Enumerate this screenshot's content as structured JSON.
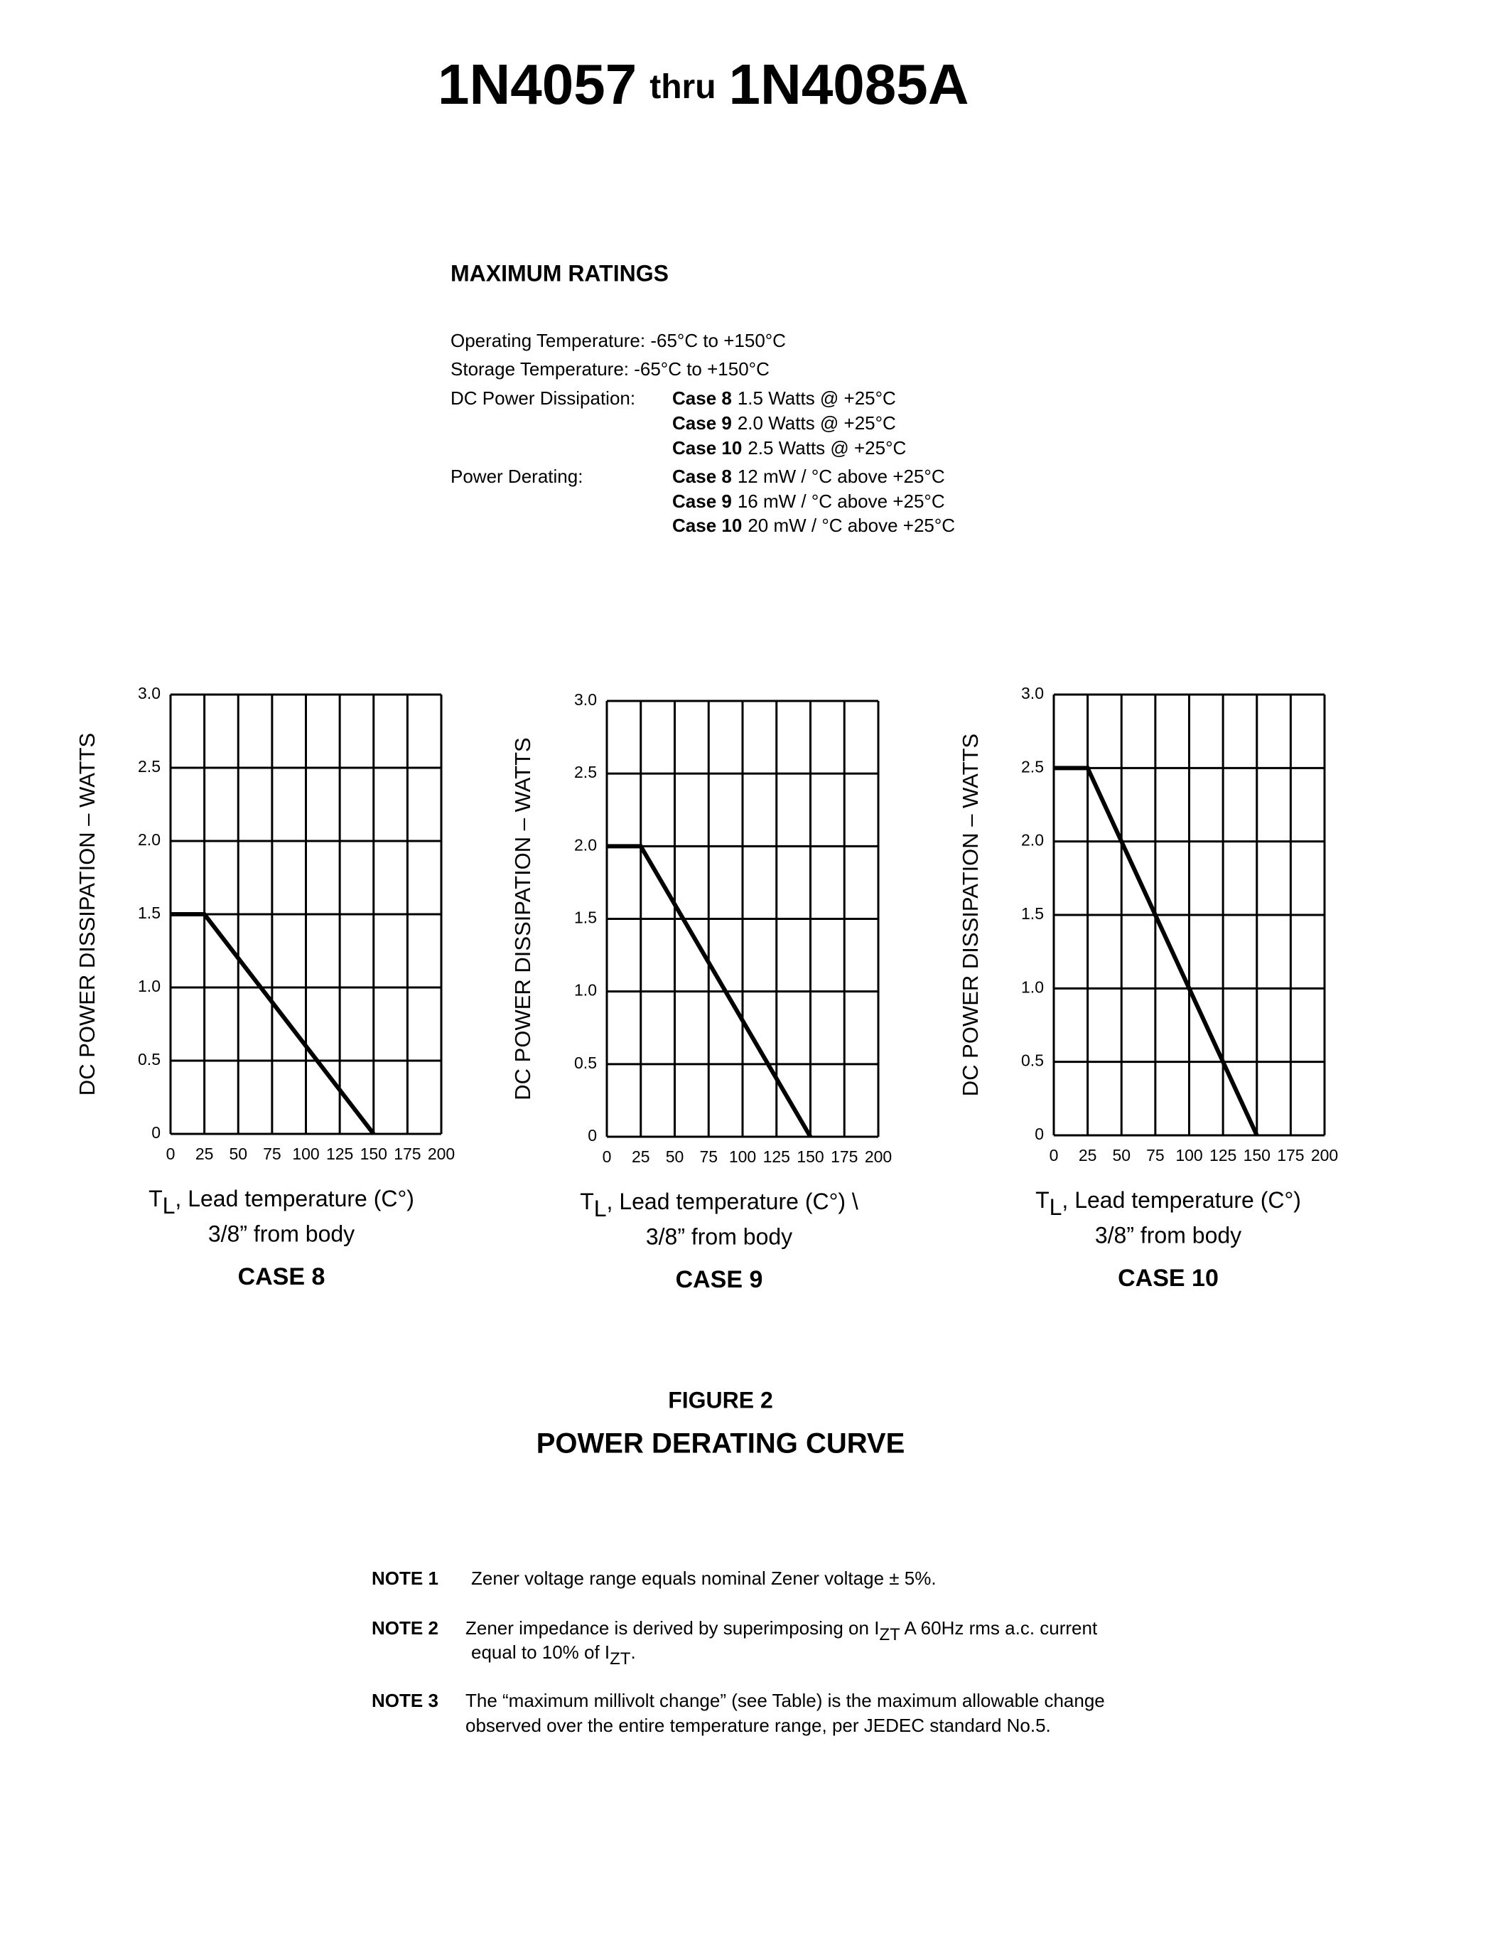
{
  "header": {
    "title": {
      "part1": "1N4057",
      "part2": "thru",
      "part3": "1N4085A"
    }
  },
  "ratings": {
    "heading": "MAXIMUM RATINGS",
    "operating": "Operating Temperature: -65°C to +150°C",
    "storage": "Storage Temperature: -65°C to +150°C",
    "dissipation": {
      "label": "DC Power Dissipation:",
      "entries": [
        {
          "case": "Case 8",
          "text": "1.5 Watts @ +25°C"
        },
        {
          "case": "Case 9",
          "text": "2.0 Watts @ +25°C"
        },
        {
          "case": "Case 10",
          "text": "2.5 Watts @ +25°C"
        }
      ]
    },
    "derating": {
      "label": "Power Derating:",
      "entries": [
        {
          "case": "Case 8",
          "text": "12 mW / °C above +25°C"
        },
        {
          "case": "Case 9",
          "text": "16 mW / °C above +25°C"
        },
        {
          "case": "Case 10",
          "text": "20 mW / °C above +25°C"
        }
      ]
    }
  },
  "chart_data": [
    {
      "type": "line",
      "ylabel": "DC POWER DISSIPATION – WATTS",
      "xlabel": {
        "symbol": "T",
        "subscript": "L",
        "text": ", Lead temperature (C°)",
        "line2": "3/8” from body"
      },
      "caption": "CASE 8",
      "x": [
        0,
        25,
        150
      ],
      "series": [
        {
          "values": [
            1.5,
            1.5,
            0
          ],
          "color": "#000000"
        }
      ],
      "xlim": [
        0,
        200
      ],
      "ylim": [
        0,
        3
      ],
      "xticks": [
        0,
        25,
        50,
        75,
        100,
        125,
        150,
        175,
        200
      ],
      "yticks": [
        0,
        0.5,
        {
          "value": 1,
          "label": "1.0"
        },
        1.5,
        {
          "value": 2,
          "label": "2.0"
        },
        2.5,
        {
          "value": 3,
          "label": "3.0"
        }
      ],
      "grid": true
    },
    {
      "type": "line",
      "ylabel": "DC POWER DISSIPATION – WATTS",
      "xlabel": {
        "symbol": "T",
        "subscript": "L",
        "text": ", Lead temperature (C°) \\",
        "line2": "3/8” from body"
      },
      "caption": "CASE 9",
      "x": [
        0,
        25,
        150
      ],
      "series": [
        {
          "values": [
            2,
            2,
            0
          ],
          "color": "#000000"
        }
      ],
      "xlim": [
        0,
        200
      ],
      "ylim": [
        0,
        3
      ],
      "xticks": [
        0,
        25,
        50,
        75,
        100,
        125,
        150,
        175,
        200
      ],
      "yticks": [
        0,
        0.5,
        {
          "value": 1,
          "label": "1.0"
        },
        1.5,
        {
          "value": 2,
          "label": "2.0"
        },
        2.5,
        {
          "value": 3,
          "label": "3.0"
        }
      ],
      "grid": true
    },
    {
      "type": "line",
      "ylabel": "DC POWER DISSIPATION – WATTS",
      "xlabel": {
        "symbol": "T",
        "subscript": "L",
        "text": ", Lead temperature (C°)",
        "line2": "3/8” from body"
      },
      "caption": "CASE 10",
      "x": [
        0,
        25,
        150
      ],
      "series": [
        {
          "values": [
            2.5,
            2.5,
            0
          ],
          "color": "#000000"
        }
      ],
      "xlim": [
        0,
        200
      ],
      "ylim": [
        0,
        3
      ],
      "xticks": [
        0,
        25,
        50,
        75,
        100,
        125,
        150,
        175,
        200
      ],
      "yticks": [
        0,
        0.5,
        {
          "value": 1,
          "label": "1.0"
        },
        1.5,
        {
          "value": 2,
          "label": "2.0"
        },
        2.5,
        {
          "value": 3,
          "label": "3.0"
        }
      ],
      "grid": true
    }
  ],
  "figure": {
    "label": "FIGURE 2",
    "title": "POWER DERATING CURVE"
  },
  "notes": [
    {
      "label": "NOTE 1",
      "line1": "Zener voltage range equals nominal Zener voltage ± 5%."
    },
    {
      "label": "NOTE 2",
      "line1": {
        "text": "Zener impedance is derived by superimposing on I",
        "sub": "ZT",
        "after": " A 60Hz rms a.c. current"
      },
      "line2": {
        "text": "equal to 10% of I",
        "sub": "ZT",
        "after": "."
      }
    },
    {
      "label": "NOTE 3",
      "line1": "The “maximum millivolt change” (see Table) is the maximum allowable change",
      "line2": "observed over the entire temperature range, per JEDEC standard No.5."
    }
  ]
}
